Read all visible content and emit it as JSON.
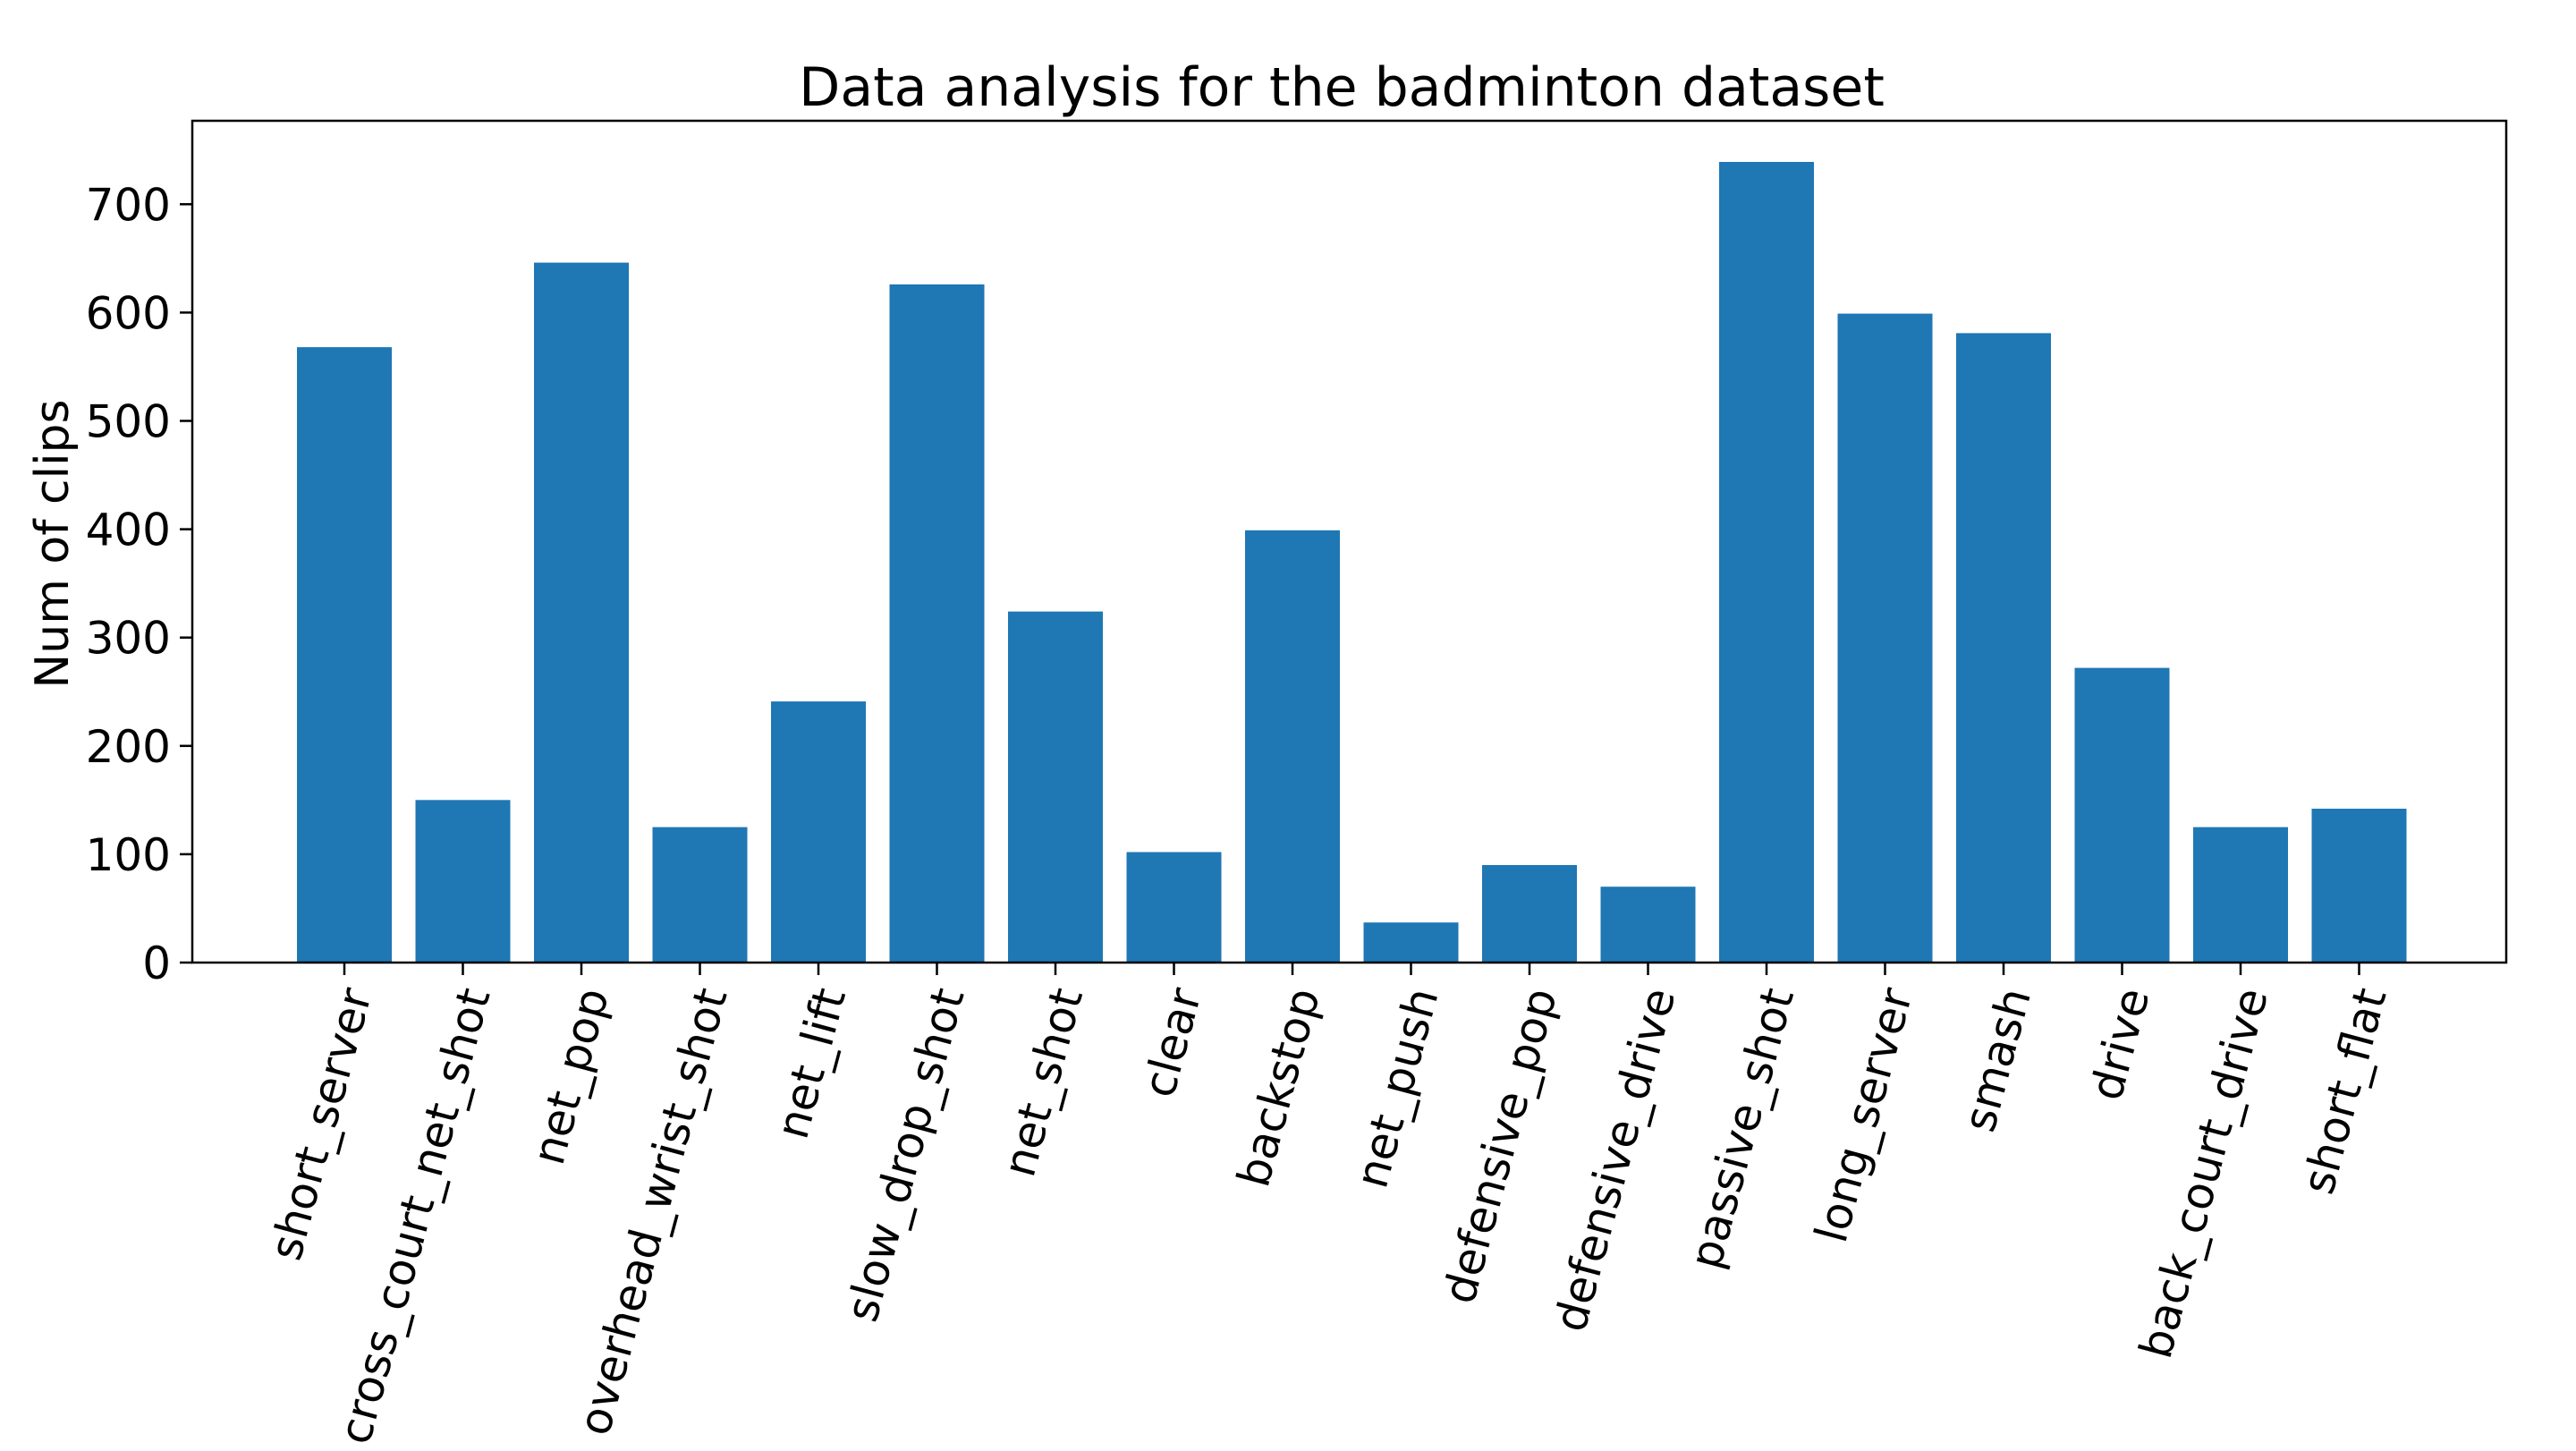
{
  "chart_data": {
    "type": "bar",
    "title": "Data analysis for the badminton dataset",
    "xlabel": "",
    "ylabel": "Num of clips",
    "categories": [
      "short_server",
      "cross_court_net_shot",
      "net_pop",
      "overhead_wrist_shot",
      "net_lift",
      "slow_drop_shot",
      "net_shot",
      "clear",
      "backstop",
      "net_push",
      "defensive_pop",
      "defensive_drive",
      "passive_shot",
      "long_server",
      "smash",
      "drive",
      "back_court_drive",
      "short_flat"
    ],
    "values": [
      568,
      150,
      646,
      125,
      241,
      626,
      324,
      102,
      399,
      37,
      90,
      70,
      739,
      599,
      581,
      272,
      125,
      142
    ],
    "ylim": [
      0,
      777
    ],
    "yticks": [
      0,
      100,
      200,
      300,
      400,
      500,
      600,
      700
    ],
    "bar_color": "#1f77b4",
    "xtick_rotation_deg": 75,
    "grid": false,
    "legend": "none"
  }
}
